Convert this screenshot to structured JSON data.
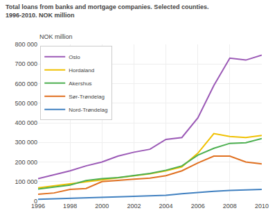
{
  "chart_data": {
    "type": "line",
    "title": "Total loans from banks and mortgage companies. Selected counties.",
    "subtitle": "1996-2010. NOK million",
    "ylabel": "NOK million",
    "x": [
      1996,
      1997,
      1998,
      1999,
      2000,
      2001,
      2002,
      2003,
      2004,
      2005,
      2006,
      2007,
      2008,
      2009,
      2010
    ],
    "series": [
      {
        "name": "Oslo",
        "color": "#9B59B6",
        "values": [
          115000,
          135000,
          155000,
          180000,
          200000,
          230000,
          250000,
          265000,
          315000,
          325000,
          425000,
          590000,
          730000,
          720000,
          745000
        ]
      },
      {
        "name": "Hordaland",
        "color": "#F0C000",
        "values": [
          68000,
          78000,
          88000,
          100000,
          110000,
          120000,
          130000,
          140000,
          155000,
          175000,
          245000,
          345000,
          330000,
          325000,
          335000
        ]
      },
      {
        "name": "Akershus",
        "color": "#4CAF50",
        "values": [
          62000,
          72000,
          82000,
          105000,
          115000,
          120000,
          130000,
          142000,
          158000,
          180000,
          235000,
          270000,
          295000,
          298000,
          320000
        ]
      },
      {
        "name": "Sør-Trøndelag",
        "color": "#E07020",
        "values": [
          35000,
          42000,
          60000,
          65000,
          100000,
          105000,
          112000,
          118000,
          130000,
          155000,
          195000,
          230000,
          230000,
          200000,
          190000
        ]
      },
      {
        "name": "Nord-Trøndelag",
        "color": "#4080C0",
        "values": [
          10000,
          12000,
          14000,
          17000,
          20000,
          22000,
          25000,
          27000,
          30000,
          38000,
          45000,
          50000,
          55000,
          57000,
          60000
        ]
      }
    ],
    "xlim": [
      1996,
      2010
    ],
    "xticks": [
      1996,
      1998,
      2000,
      2002,
      2004,
      2006,
      2008,
      2010
    ],
    "ylim": [
      0,
      800000
    ],
    "yticks": [
      0,
      {
        "value": 100000,
        "label": "100 000"
      },
      {
        "value": 200000,
        "label": "200 000"
      },
      {
        "value": 300000,
        "label": "300 000"
      },
      {
        "value": 400000,
        "label": "400 000"
      },
      {
        "value": 500000,
        "label": "500 000"
      },
      {
        "value": 600000,
        "label": "600 000"
      },
      {
        "value": 700000,
        "label": "700 000"
      },
      {
        "value": 800000,
        "label": "800 000"
      }
    ],
    "grid": true,
    "legend": "upper left"
  }
}
